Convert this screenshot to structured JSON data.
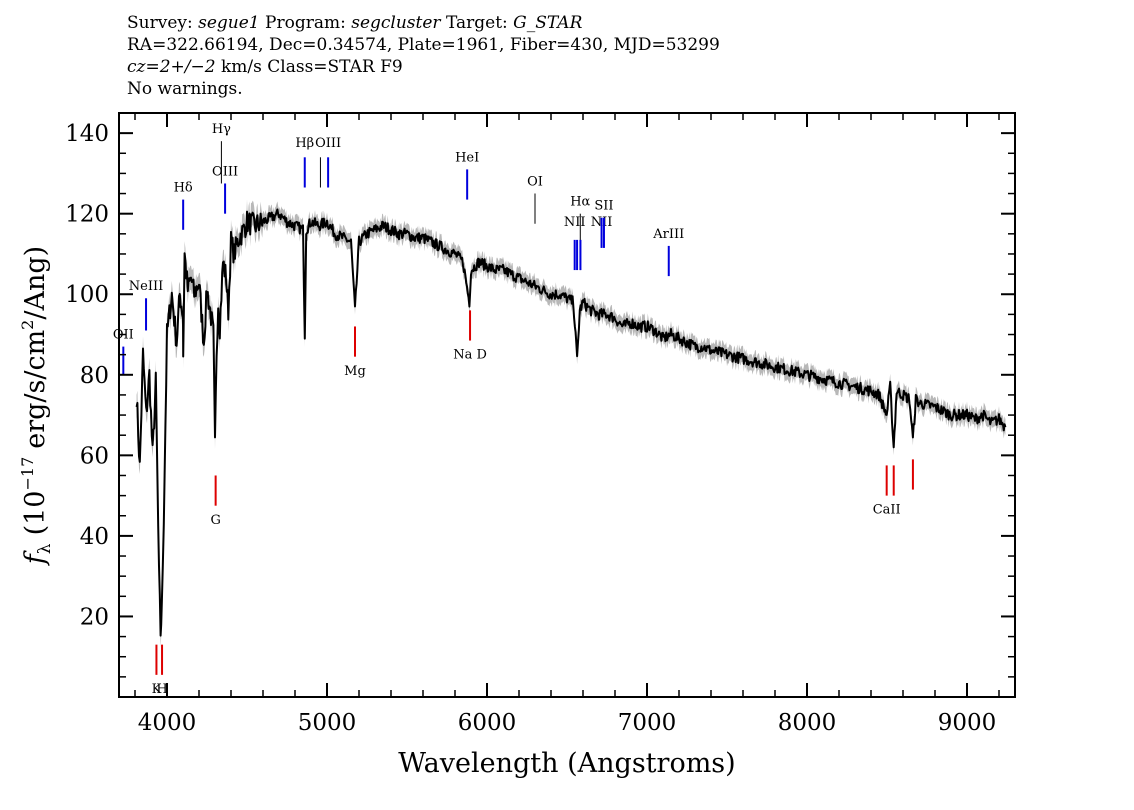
{
  "header": {
    "line1": {
      "survey_label": "Survey:",
      "survey": "segue1",
      "program_label": "Program:",
      "program": "segcluster",
      "target_label": "Target:",
      "target": "G_STAR"
    },
    "line2": "RA=322.66194, Dec=0.34574, Plate=1961, Fiber=430, MJD=53299",
    "line3": {
      "cz": "cz=2+/−2",
      "rest": "km/s Class=STAR F9"
    },
    "line4": "No warnings."
  },
  "colors": {
    "spectrum": "#000000",
    "error_band": "#b8b8b8",
    "emission_line": "#0000dd",
    "absorption_line": "#dd0000",
    "sky_line": "#000000"
  },
  "chart_data": {
    "type": "line",
    "xlabel": "Wavelength (Angstroms)",
    "ylabel_parts": {
      "f": "f",
      "sub": "λ",
      "open": "(10",
      "exp": "−17",
      "mid": "erg/s/cm",
      "exp2": "2",
      "close": "/Ang)"
    },
    "xlim": [
      3700,
      9300
    ],
    "ylim": [
      0,
      145
    ],
    "x_ticks": [
      4000,
      5000,
      6000,
      7000,
      8000,
      9000
    ],
    "x_tick_labels": [
      "4000",
      "5000",
      "6000",
      "7000",
      "8000",
      "9000"
    ],
    "y_ticks": [
      20,
      40,
      60,
      80,
      100,
      120,
      140
    ],
    "y_tick_labels": [
      "20",
      "40",
      "60",
      "80",
      "100",
      "120",
      "140"
    ],
    "spectrum": {
      "x": [
        3810,
        3830,
        3850,
        3870,
        3890,
        3910,
        3930,
        3950,
        3960,
        3968,
        3980,
        4000,
        4030,
        4060,
        4080,
        4100,
        4101,
        4110,
        4130,
        4150,
        4170,
        4200,
        4230,
        4250,
        4270,
        4290,
        4300,
        4310,
        4320,
        4330,
        4340,
        4350,
        4370,
        4383,
        4400,
        4420,
        4450,
        4480,
        4500,
        4550,
        4600,
        4650,
        4700,
        4750,
        4800,
        4850,
        4861,
        4870,
        4900,
        4950,
        5000,
        5050,
        5100,
        5150,
        5175,
        5200,
        5250,
        5300,
        5350,
        5400,
        5450,
        5500,
        5550,
        5600,
        5650,
        5700,
        5750,
        5800,
        5850,
        5890,
        5900,
        5950,
        6000,
        6050,
        6100,
        6150,
        6200,
        6250,
        6300,
        6350,
        6400,
        6450,
        6500,
        6540,
        6563,
        6580,
        6600,
        6650,
        6700,
        6750,
        6800,
        6850,
        6900,
        6950,
        7000,
        7050,
        7100,
        7150,
        7200,
        7250,
        7300,
        7350,
        7400,
        7500,
        7600,
        7700,
        7800,
        7900,
        8000,
        8100,
        8200,
        8300,
        8400,
        8450,
        8498,
        8520,
        8542,
        8560,
        8600,
        8640,
        8662,
        8680,
        8700,
        8800,
        8900,
        9000,
        9050,
        9100,
        9150,
        9200,
        9240
      ],
      "y": [
        75,
        57,
        85,
        70,
        80,
        60,
        78,
        30,
        16,
        22,
        45,
        90,
        100,
        88,
        100,
        95,
        85,
        110,
        101,
        104,
        100,
        103,
        88,
        101,
        96,
        90,
        62,
        86,
        98,
        92,
        100,
        108,
        104,
        96,
        113,
        110,
        114,
        116,
        118,
        117,
        118,
        119,
        120,
        118,
        117,
        116,
        90,
        116,
        118,
        117,
        118,
        115,
        114,
        113,
        96,
        113,
        115,
        116,
        117,
        116,
        115,
        115,
        114,
        114,
        113,
        112,
        111,
        110,
        108,
        98,
        106,
        108,
        107,
        106,
        106,
        105,
        104,
        103,
        102,
        101,
        100,
        100,
        99,
        98,
        84,
        96,
        98,
        96,
        95,
        95,
        94,
        92,
        93,
        92,
        92,
        91,
        89,
        90,
        89,
        88,
        87,
        87,
        86,
        85,
        84,
        83,
        82,
        81,
        80,
        79,
        78,
        77,
        76,
        75,
        70,
        77,
        62,
        76,
        75,
        74,
        64,
        74,
        73,
        72,
        70,
        70,
        69,
        70,
        68,
        69,
        67
      ]
    },
    "lines": [
      {
        "label": "OII",
        "wl": 3727,
        "kind": "emission",
        "y1": 80,
        "y2": 87,
        "label_y": 89
      },
      {
        "label": "NeIII",
        "wl": 3869,
        "kind": "emission",
        "y1": 91,
        "y2": 99,
        "label_y": 101
      },
      {
        "label": "Hδ",
        "wl": 4101,
        "kind": "emission",
        "y1": 116,
        "y2": 123.5,
        "label_y": 125.5
      },
      {
        "label": "Hγ",
        "wl": 4340,
        "kind": "sky",
        "y1": 127.5,
        "y2": 138,
        "label_y": 140
      },
      {
        "label": "OIII",
        "wl": 4363,
        "kind": "emission",
        "y1": 120,
        "y2": 127.5,
        "label_y": 129.5
      },
      {
        "label": "Hβ",
        "wl": 4861,
        "kind": "emission",
        "y1": 126.5,
        "y2": 134,
        "label_y": 136.5
      },
      {
        "label": "OIII",
        "wl": 4959,
        "kind": "sky",
        "y1": 126.5,
        "y2": 134,
        "label_y": null
      },
      {
        "label": "OIII",
        "wl": 5007,
        "kind": "emission",
        "y1": 126.5,
        "y2": 134,
        "label_y": 136.5
      },
      {
        "label": "HeI",
        "wl": 5876,
        "kind": "emission",
        "y1": 123.5,
        "y2": 131,
        "label_y": 133
      },
      {
        "label": "OI",
        "wl": 6300,
        "kind": "sky",
        "y1": 117.5,
        "y2": 125,
        "label_y": 127
      },
      {
        "label": "NII",
        "wl": 6548,
        "kind": "emission",
        "y1": 106,
        "y2": 113.5,
        "label_y": 117
      },
      {
        "label": "Hα",
        "wl": 6563,
        "kind": "emission",
        "y1": 106,
        "y2": 113.5,
        "label_y": null
      },
      {
        "label": "Hα",
        "wl": 6583,
        "kind": "sky",
        "y1": 106,
        "y2": 120,
        "label_y": 122
      },
      {
        "label": "NII",
        "wl": 6584,
        "kind": "emission",
        "y1": 106,
        "y2": 113.5,
        "label_y": null
      },
      {
        "label": "NII",
        "wl": 6716,
        "kind": "emission",
        "y1": 111.5,
        "y2": 119,
        "label_y": 117
      },
      {
        "label": "SII",
        "wl": 6731,
        "kind": "emission",
        "y1": 111.5,
        "y2": 119,
        "label_y": 121
      },
      {
        "label": "ArIII",
        "wl": 7136,
        "kind": "emission",
        "y1": 104.5,
        "y2": 112,
        "label_y": 114
      },
      {
        "label": "Mg",
        "wl": 5175,
        "kind": "absorption",
        "y1": 84.5,
        "y2": 92,
        "label_y": 80
      },
      {
        "label": "Na D",
        "wl": 5894,
        "kind": "absorption",
        "y1": 88.5,
        "y2": 96,
        "label_y": 84
      },
      {
        "label": "G",
        "wl": 4304,
        "kind": "absorption",
        "y1": 47.5,
        "y2": 55,
        "label_y": 43
      },
      {
        "label": "K",
        "wl": 3934,
        "kind": "absorption",
        "y1": 5.5,
        "y2": 13,
        "label_y": 1
      },
      {
        "label": "H",
        "wl": 3969,
        "kind": "absorption",
        "y1": 5.5,
        "y2": 13,
        "label_y": 1
      },
      {
        "label": "CaII",
        "wl": 8498,
        "kind": "absorption",
        "y1": 50,
        "y2": 57.5,
        "label_y": 45.5
      },
      {
        "label": "CaII",
        "wl": 8542,
        "kind": "absorption",
        "y1": 50,
        "y2": 57.5,
        "label_y": null
      },
      {
        "label": "CaII",
        "wl": 8662,
        "kind": "absorption",
        "y1": 51.5,
        "y2": 59,
        "label_y": null
      }
    ]
  }
}
